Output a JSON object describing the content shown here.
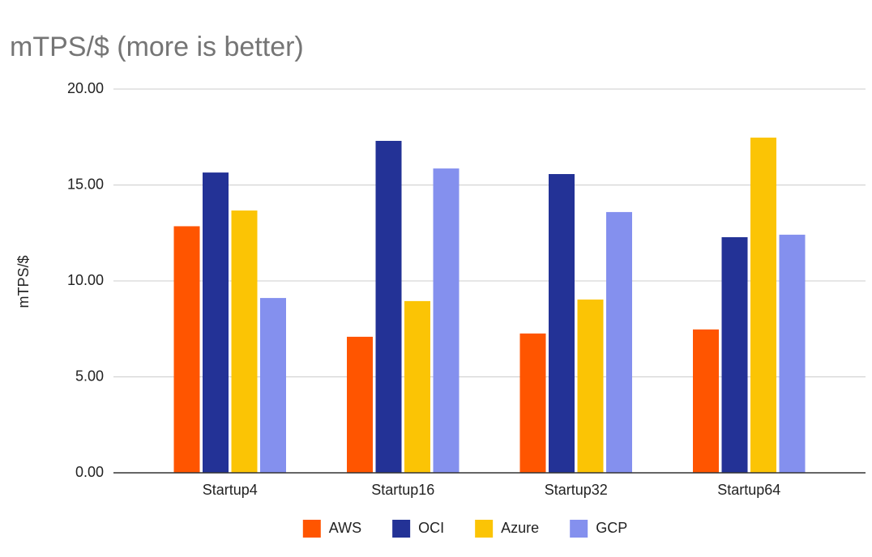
{
  "chart_data": {
    "type": "bar",
    "title": "mTPS/$ (more is better)",
    "y_label": "mTPS/$",
    "categories": [
      "Startup4",
      "Startup16",
      "Startup32",
      "Startup64"
    ],
    "series": [
      {
        "name": "AWS",
        "color": "#ff5500",
        "values": [
          12.85,
          7.09,
          7.26,
          7.47
        ]
      },
      {
        "name": "OCI",
        "color": "#233296",
        "values": [
          15.65,
          17.3,
          15.57,
          12.28
        ]
      },
      {
        "name": "Azure",
        "color": "#fbc405",
        "values": [
          13.67,
          8.95,
          9.03,
          17.47
        ]
      },
      {
        "name": "GCP",
        "color": "#8490ee",
        "values": [
          9.11,
          15.86,
          13.59,
          12.41
        ]
      }
    ],
    "ylim": [
      0,
      20
    ],
    "yticks": [
      {
        "value": 0,
        "label": "0.00"
      },
      {
        "value": 5,
        "label": "5.00"
      },
      {
        "value": 10,
        "label": "10.00"
      },
      {
        "value": 15,
        "label": "15.00"
      },
      {
        "value": 20,
        "label": "20.00"
      }
    ],
    "grid": true,
    "legend": "bottom"
  }
}
